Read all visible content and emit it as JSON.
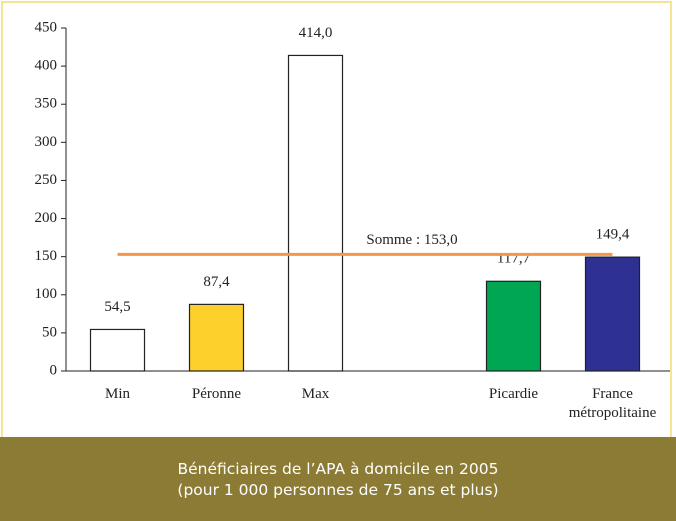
{
  "chart_data": {
    "type": "bar",
    "categories": [
      "Min",
      "Péronne",
      "Max",
      null,
      "Picardie",
      "France métropolitaine"
    ],
    "values": [
      54.5,
      87.4,
      414.0,
      null,
      117.7,
      149.4
    ],
    "value_labels": [
      "54,5",
      "87,4",
      "414,0",
      null,
      "117,7",
      "149,4"
    ],
    "colors": [
      "#ffffff",
      "#fdd02b",
      "#ffffff",
      null,
      "#00a651",
      "#2e3192"
    ],
    "ylim": [
      0,
      450
    ],
    "yticks": [
      0,
      50,
      100,
      150,
      200,
      250,
      300,
      350,
      400,
      450
    ],
    "reference_line": {
      "value": 153.0,
      "label": "Somme : 153,0",
      "color": "#f7954a"
    },
    "caption": [
      "Bénéficiaires de l’APA à domicile en 2005",
      "(pour 1 000 personnes de 75 ans et plus)"
    ]
  }
}
